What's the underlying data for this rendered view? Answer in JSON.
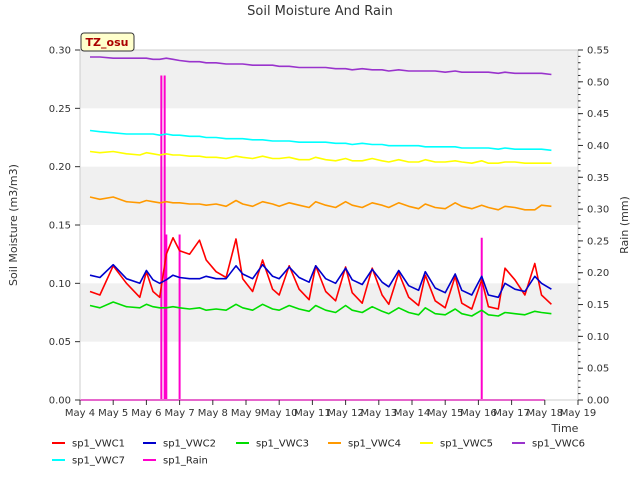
{
  "chart_data": {
    "type": "line",
    "title": "Soil Moisture And Rain",
    "site_label": "TZ_osu",
    "xlabel": "Time",
    "ylabel": "Soil Moisture (m3/m3)",
    "ylabel_right": "Rain (mm)",
    "xlim": [
      4,
      19
    ],
    "ylim": [
      0,
      0.3
    ],
    "ylim_right": [
      0,
      0.55
    ],
    "x_ticks": [
      4,
      5,
      6,
      7,
      8,
      9,
      10,
      11,
      12,
      13,
      14,
      15,
      16,
      17,
      18,
      19
    ],
    "x_tick_labels": [
      "May 4",
      "May 5",
      "May 6",
      "May 7",
      "May 8",
      "May 9",
      "May 10",
      "May 11",
      "May 12",
      "May 13",
      "May 14",
      "May 15",
      "May 16",
      "May 17",
      "May 18",
      "May 19"
    ],
    "y_ticks": [
      "0.00",
      "0.05",
      "0.10",
      "0.15",
      "0.20",
      "0.25",
      "0.30"
    ],
    "y_ticks_right": [
      "0.00",
      "0.05",
      "0.10",
      "0.15",
      "0.20",
      "0.25",
      "0.30",
      "0.35",
      "0.40",
      "0.45",
      "0.50",
      "0.55"
    ],
    "grid": false,
    "bands": true,
    "legend_position": "bottom",
    "x": [
      4.3,
      4.6,
      5.0,
      5.4,
      5.8,
      6.0,
      6.2,
      6.4,
      6.6,
      6.8,
      7.0,
      7.3,
      7.6,
      7.8,
      8.1,
      8.4,
      8.7,
      8.9,
      9.2,
      9.5,
      9.8,
      10.0,
      10.3,
      10.6,
      10.9,
      11.1,
      11.4,
      11.7,
      12.0,
      12.2,
      12.5,
      12.8,
      13.1,
      13.3,
      13.6,
      13.9,
      14.2,
      14.4,
      14.7,
      15.0,
      15.3,
      15.5,
      15.8,
      16.1,
      16.3,
      16.6,
      16.8,
      17.1,
      17.4,
      17.7,
      17.9,
      18.2
    ],
    "series": [
      {
        "name": "sp1_VWC1",
        "color": "#ff0000",
        "values": [
          0.093,
          0.09,
          0.115,
          0.1,
          0.088,
          0.11,
          0.093,
          0.088,
          0.125,
          0.139,
          0.128,
          0.125,
          0.137,
          0.12,
          0.11,
          0.105,
          0.138,
          0.104,
          0.093,
          0.12,
          0.095,
          0.09,
          0.115,
          0.095,
          0.086,
          0.115,
          0.093,
          0.085,
          0.114,
          0.092,
          0.083,
          0.113,
          0.09,
          0.082,
          0.109,
          0.088,
          0.081,
          0.107,
          0.085,
          0.079,
          0.106,
          0.083,
          0.078,
          0.103,
          0.08,
          0.078,
          0.113,
          0.103,
          0.09,
          0.117,
          0.09,
          0.082
        ]
      },
      {
        "name": "sp1_VWC2",
        "color": "#0000cc",
        "values": [
          0.107,
          0.105,
          0.116,
          0.104,
          0.1,
          0.111,
          0.103,
          0.1,
          0.103,
          0.107,
          0.105,
          0.104,
          0.104,
          0.106,
          0.104,
          0.104,
          0.115,
          0.108,
          0.104,
          0.116,
          0.106,
          0.104,
          0.114,
          0.105,
          0.101,
          0.115,
          0.104,
          0.1,
          0.113,
          0.103,
          0.099,
          0.112,
          0.101,
          0.097,
          0.111,
          0.098,
          0.094,
          0.11,
          0.096,
          0.092,
          0.108,
          0.094,
          0.09,
          0.106,
          0.09,
          0.088,
          0.1,
          0.095,
          0.093,
          0.106,
          0.1,
          0.095
        ]
      },
      {
        "name": "sp1_VWC3",
        "color": "#00dd00",
        "values": [
          0.081,
          0.079,
          0.084,
          0.08,
          0.079,
          0.082,
          0.08,
          0.079,
          0.079,
          0.08,
          0.079,
          0.078,
          0.079,
          0.077,
          0.078,
          0.077,
          0.082,
          0.079,
          0.077,
          0.082,
          0.078,
          0.077,
          0.081,
          0.078,
          0.076,
          0.081,
          0.077,
          0.075,
          0.081,
          0.077,
          0.075,
          0.08,
          0.076,
          0.074,
          0.079,
          0.075,
          0.073,
          0.079,
          0.074,
          0.073,
          0.078,
          0.074,
          0.072,
          0.077,
          0.073,
          0.072,
          0.075,
          0.074,
          0.073,
          0.076,
          0.075,
          0.074
        ]
      },
      {
        "name": "sp1_VWC4",
        "color": "#ff9900",
        "values": [
          0.174,
          0.172,
          0.174,
          0.17,
          0.169,
          0.171,
          0.17,
          0.169,
          0.17,
          0.169,
          0.169,
          0.168,
          0.168,
          0.167,
          0.168,
          0.166,
          0.171,
          0.168,
          0.166,
          0.17,
          0.168,
          0.166,
          0.169,
          0.167,
          0.165,
          0.17,
          0.167,
          0.165,
          0.17,
          0.167,
          0.165,
          0.169,
          0.167,
          0.165,
          0.169,
          0.166,
          0.164,
          0.168,
          0.165,
          0.164,
          0.169,
          0.166,
          0.164,
          0.167,
          0.165,
          0.163,
          0.166,
          0.165,
          0.163,
          0.163,
          0.167,
          0.166
        ]
      },
      {
        "name": "sp1_VWC5",
        "color": "#ffff00",
        "values": [
          0.213,
          0.212,
          0.213,
          0.211,
          0.21,
          0.212,
          0.211,
          0.21,
          0.211,
          0.21,
          0.21,
          0.209,
          0.209,
          0.208,
          0.208,
          0.207,
          0.209,
          0.208,
          0.207,
          0.209,
          0.207,
          0.207,
          0.208,
          0.206,
          0.206,
          0.208,
          0.206,
          0.205,
          0.207,
          0.205,
          0.205,
          0.207,
          0.205,
          0.204,
          0.206,
          0.204,
          0.204,
          0.206,
          0.204,
          0.204,
          0.205,
          0.204,
          0.203,
          0.205,
          0.203,
          0.203,
          0.204,
          0.204,
          0.203,
          0.203,
          0.203,
          0.203
        ]
      },
      {
        "name": "sp1_VWC6",
        "color": "#9933cc",
        "values": [
          0.294,
          0.294,
          0.293,
          0.293,
          0.293,
          0.293,
          0.292,
          0.292,
          0.293,
          0.292,
          0.291,
          0.29,
          0.29,
          0.289,
          0.289,
          0.288,
          0.288,
          0.288,
          0.287,
          0.287,
          0.287,
          0.286,
          0.286,
          0.285,
          0.285,
          0.285,
          0.285,
          0.284,
          0.284,
          0.283,
          0.284,
          0.283,
          0.283,
          0.282,
          0.283,
          0.282,
          0.282,
          0.282,
          0.282,
          0.281,
          0.282,
          0.281,
          0.281,
          0.281,
          0.281,
          0.28,
          0.281,
          0.28,
          0.28,
          0.28,
          0.28,
          0.279
        ]
      },
      {
        "name": "sp1_VWC7",
        "color": "#00ffff",
        "values": [
          0.231,
          0.23,
          0.229,
          0.228,
          0.228,
          0.228,
          0.228,
          0.227,
          0.228,
          0.227,
          0.227,
          0.226,
          0.226,
          0.225,
          0.225,
          0.224,
          0.224,
          0.224,
          0.223,
          0.223,
          0.222,
          0.222,
          0.222,
          0.221,
          0.221,
          0.221,
          0.221,
          0.22,
          0.22,
          0.219,
          0.22,
          0.219,
          0.219,
          0.218,
          0.218,
          0.218,
          0.218,
          0.217,
          0.217,
          0.217,
          0.217,
          0.216,
          0.216,
          0.216,
          0.216,
          0.215,
          0.216,
          0.215,
          0.215,
          0.215,
          0.215,
          0.214
        ]
      }
    ],
    "rain": {
      "name": "sp1_Rain",
      "color": "#ff00cc",
      "events": [
        {
          "x": 6.45,
          "value": 0.51
        },
        {
          "x": 6.55,
          "value": 0.51
        },
        {
          "x": 6.6,
          "value": 0.26
        },
        {
          "x": 7.0,
          "value": 0.26
        },
        {
          "x": 16.1,
          "value": 0.255
        }
      ]
    },
    "legend": [
      {
        "name": "sp1_VWC1",
        "color": "#ff0000"
      },
      {
        "name": "sp1_VWC2",
        "color": "#0000cc"
      },
      {
        "name": "sp1_VWC3",
        "color": "#00dd00"
      },
      {
        "name": "sp1_VWC4",
        "color": "#ff9900"
      },
      {
        "name": "sp1_VWC5",
        "color": "#ffff00"
      },
      {
        "name": "sp1_VWC6",
        "color": "#9933cc"
      },
      {
        "name": "sp1_VWC7",
        "color": "#00ffff"
      },
      {
        "name": "sp1_Rain",
        "color": "#ff00cc"
      }
    ]
  }
}
